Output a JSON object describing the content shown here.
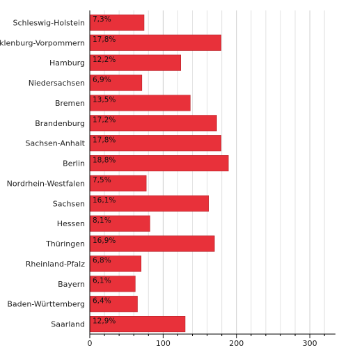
{
  "chart_data": {
    "type": "bar",
    "orientation": "horizontal",
    "categories": [
      "Schleswig-Holstein",
      "Mecklenburg-Vorpommern",
      "Hamburg",
      "Niedersachsen",
      "Bremen",
      "Brandenburg",
      "Sachsen-Anhalt",
      "Berlin",
      "Nordrhein-Westfalen",
      "Sachsen",
      "Hessen",
      "Thüringen",
      "Rheinland-Pfalz",
      "Bayern",
      "Baden-Württemberg",
      "Saarland"
    ],
    "values": [
      74,
      179,
      124,
      71,
      137,
      173,
      179,
      189,
      77,
      162,
      82,
      170,
      70,
      62,
      65,
      130
    ],
    "value_labels": [
      "7,3%",
      "17,8%",
      "12,2%",
      "6,9%",
      "13,5%",
      "17,2%",
      "17,8%",
      "18,8%",
      "7,5%",
      "16,1%",
      "8,1%",
      "16,9%",
      "6,8%",
      "6,1%",
      "6,4%",
      "12,9%"
    ],
    "xlim": [
      0,
      335
    ],
    "x_ticks": [
      0,
      100,
      200,
      300
    ],
    "x_tick_labels": [
      "0",
      "100",
      "200",
      "300"
    ],
    "minor_tick_step": 20,
    "grid": true,
    "bar_color": "#e8313a",
    "title": "",
    "xlabel": "",
    "ylabel": ""
  }
}
